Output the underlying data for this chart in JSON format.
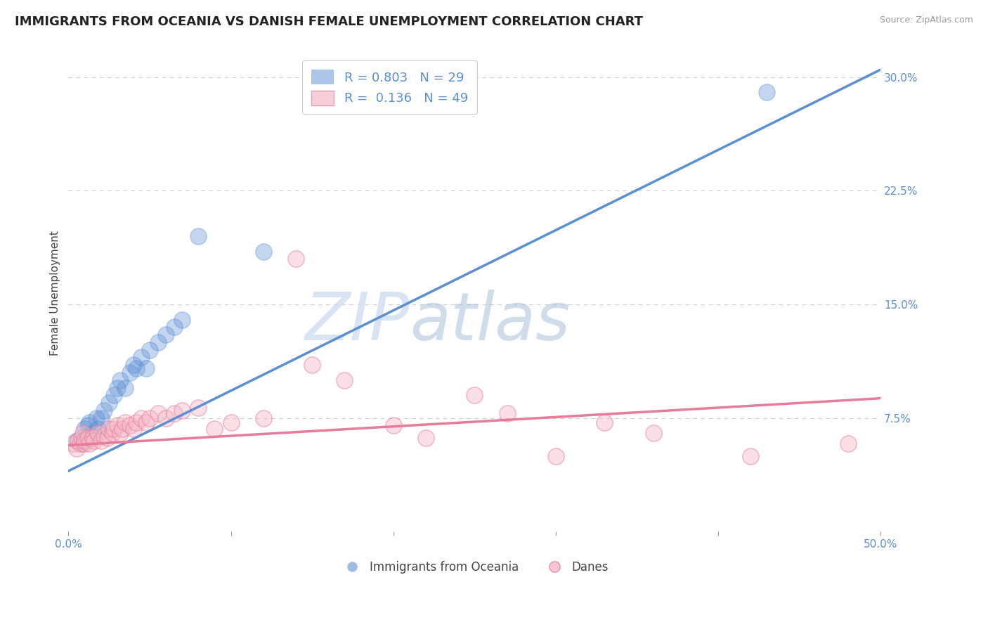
{
  "title": "IMMIGRANTS FROM OCEANIA VS DANISH FEMALE UNEMPLOYMENT CORRELATION CHART",
  "source": "Source: ZipAtlas.com",
  "ylabel": "Female Unemployment",
  "xlim": [
    0.0,
    0.5
  ],
  "ylim": [
    0.0,
    0.315
  ],
  "xticks": [
    0.0,
    0.1,
    0.2,
    0.3,
    0.4,
    0.5
  ],
  "xticklabels_show": [
    "0.0%",
    "",
    "",
    "",
    "",
    "50.0%"
  ],
  "yticks_right": [
    0.0,
    0.075,
    0.15,
    0.225,
    0.3
  ],
  "ytick_labels_right": [
    "",
    "7.5%",
    "15.0%",
    "22.5%",
    "30.0%"
  ],
  "blue_color": "#5b8fd4",
  "pink_color": "#e87a9a",
  "blue_label": "Immigrants from Oceania",
  "pink_label": "Danes",
  "blue_R": "0.803",
  "blue_N": "29",
  "pink_R": "0.136",
  "pink_N": "49",
  "watermark_zip": "ZIP",
  "watermark_atlas": "atlas",
  "title_fontsize": 13,
  "axis_color": "#5b8fd4",
  "tick_color": "#999999",
  "background_color": "#ffffff",
  "blue_scatter_x": [
    0.005,
    0.008,
    0.01,
    0.01,
    0.012,
    0.013,
    0.015,
    0.017,
    0.018,
    0.02,
    0.022,
    0.025,
    0.028,
    0.03,
    0.032,
    0.035,
    0.038,
    0.04,
    0.042,
    0.045,
    0.048,
    0.05,
    0.055,
    0.06,
    0.065,
    0.07,
    0.08,
    0.12,
    0.43
  ],
  "blue_scatter_y": [
    0.06,
    0.058,
    0.062,
    0.068,
    0.07,
    0.072,
    0.065,
    0.075,
    0.068,
    0.075,
    0.08,
    0.085,
    0.09,
    0.095,
    0.1,
    0.095,
    0.105,
    0.11,
    0.108,
    0.115,
    0.108,
    0.12,
    0.125,
    0.13,
    0.135,
    0.14,
    0.195,
    0.185,
    0.29
  ],
  "pink_scatter_x": [
    0.003,
    0.005,
    0.006,
    0.007,
    0.008,
    0.009,
    0.01,
    0.01,
    0.012,
    0.013,
    0.015,
    0.016,
    0.018,
    0.02,
    0.022,
    0.024,
    0.025,
    0.027,
    0.028,
    0.03,
    0.032,
    0.033,
    0.035,
    0.038,
    0.04,
    0.042,
    0.045,
    0.048,
    0.05,
    0.055,
    0.06,
    0.065,
    0.07,
    0.08,
    0.09,
    0.1,
    0.12,
    0.14,
    0.15,
    0.17,
    0.2,
    0.22,
    0.25,
    0.27,
    0.3,
    0.33,
    0.36,
    0.42,
    0.48
  ],
  "pink_scatter_y": [
    0.058,
    0.055,
    0.06,
    0.058,
    0.062,
    0.065,
    0.058,
    0.06,
    0.062,
    0.058,
    0.062,
    0.06,
    0.065,
    0.06,
    0.063,
    0.062,
    0.068,
    0.065,
    0.068,
    0.07,
    0.065,
    0.068,
    0.072,
    0.07,
    0.068,
    0.072,
    0.075,
    0.072,
    0.075,
    0.078,
    0.075,
    0.078,
    0.08,
    0.082,
    0.068,
    0.072,
    0.075,
    0.18,
    0.11,
    0.1,
    0.07,
    0.062,
    0.09,
    0.078,
    0.05,
    0.072,
    0.065,
    0.05,
    0.058
  ],
  "blue_line_x": [
    0.0,
    0.5
  ],
  "blue_line_y": [
    0.04,
    0.305
  ],
  "pink_line_x": [
    0.0,
    0.5
  ],
  "pink_line_y": [
    0.057,
    0.088
  ]
}
